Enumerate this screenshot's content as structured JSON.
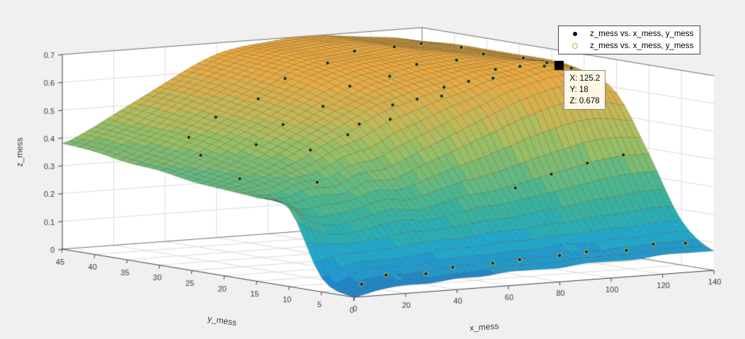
{
  "figure": {
    "background": "#f0f0f0",
    "axes_background": "#ffffff",
    "grid_color": "#dbdbdb"
  },
  "chart_data": {
    "type": "surface",
    "title": "",
    "xlabel": "x_mess",
    "ylabel": "y_mess",
    "zlabel": "z_mess",
    "xlim": [
      0,
      140
    ],
    "ylim": [
      0,
      45
    ],
    "zlim": [
      0,
      0.7
    ],
    "grid": true,
    "x_ticks": [
      0,
      20,
      40,
      60,
      80,
      100,
      120,
      140
    ],
    "x_tick_labels": [
      "0",
      "20",
      "40",
      "60",
      "80",
      "100",
      "120",
      "140"
    ],
    "y_ticks": [
      0,
      5,
      10,
      15,
      20,
      25,
      30,
      35,
      40,
      45
    ],
    "y_tick_labels": [
      "0",
      "5",
      "10",
      "15",
      "20",
      "25",
      "30",
      "35",
      "40",
      "45"
    ],
    "z_ticks": [
      0,
      0.1,
      0.2,
      0.3,
      0.4,
      0.5,
      0.6,
      0.7
    ],
    "z_tick_labels": [
      "0",
      "0.1",
      "0.2",
      "0.3",
      "0.4",
      "0.5",
      "0.6",
      "0.7"
    ],
    "surface": {
      "x": [
        0,
        10,
        20,
        30,
        40,
        50,
        60,
        70,
        80,
        90,
        100,
        110,
        120,
        130,
        140
      ],
      "y": [
        0,
        5,
        10,
        15,
        20,
        25,
        30,
        35,
        40,
        45
      ],
      "z": [
        [
          0.0,
          0.02,
          0.03,
          0.03,
          0.04,
          0.04,
          0.05,
          0.05,
          0.05,
          0.06,
          0.06,
          0.06,
          0.07,
          0.07,
          0.07
        ],
        [
          0.05,
          0.09,
          0.1,
          0.1,
          0.11,
          0.12,
          0.12,
          0.13,
          0.13,
          0.14,
          0.14,
          0.15,
          0.15,
          0.16,
          0.16
        ],
        [
          0.28,
          0.22,
          0.21,
          0.23,
          0.25,
          0.24,
          0.26,
          0.28,
          0.29,
          0.31,
          0.33,
          0.35,
          0.37,
          0.38,
          0.38
        ],
        [
          0.3,
          0.29,
          0.32,
          0.32,
          0.36,
          0.37,
          0.41,
          0.45,
          0.49,
          0.53,
          0.57,
          0.6,
          0.62,
          0.61,
          0.58
        ],
        [
          0.31,
          0.33,
          0.36,
          0.4,
          0.45,
          0.49,
          0.54,
          0.57,
          0.6,
          0.62,
          0.65,
          0.66,
          0.68,
          0.67,
          0.64
        ],
        [
          0.32,
          0.35,
          0.39,
          0.44,
          0.49,
          0.54,
          0.58,
          0.62,
          0.64,
          0.66,
          0.67,
          0.68,
          0.68,
          0.67,
          0.66
        ],
        [
          0.34,
          0.37,
          0.42,
          0.47,
          0.52,
          0.57,
          0.62,
          0.65,
          0.67,
          0.68,
          0.69,
          0.69,
          0.68,
          0.67,
          0.66
        ],
        [
          0.35,
          0.39,
          0.44,
          0.49,
          0.54,
          0.59,
          0.64,
          0.67,
          0.68,
          0.69,
          0.7,
          0.69,
          0.68,
          0.67,
          0.66
        ],
        [
          0.37,
          0.41,
          0.45,
          0.51,
          0.56,
          0.61,
          0.65,
          0.68,
          0.69,
          0.7,
          0.7,
          0.69,
          0.68,
          0.67,
          0.66
        ],
        [
          0.38,
          0.42,
          0.47,
          0.52,
          0.57,
          0.62,
          0.66,
          0.68,
          0.69,
          0.7,
          0.7,
          0.69,
          0.68,
          0.67,
          0.65
        ]
      ]
    },
    "scatter": {
      "name": "z_mess vs. x_mess, y_mess",
      "dot_color": "#101a38",
      "ring_color": "#a9b83e",
      "points": [
        [
          8,
          2,
          0.03
        ],
        [
          20,
          3,
          0.05
        ],
        [
          33,
          2,
          0.05
        ],
        [
          46,
          3,
          0.06
        ],
        [
          59,
          2,
          0.07
        ],
        [
          72,
          3,
          0.07
        ],
        [
          85,
          2,
          0.08
        ],
        [
          98,
          3,
          0.08
        ],
        [
          111,
          2,
          0.08
        ],
        [
          124,
          3,
          0.09
        ],
        [
          134,
          2,
          0.09
        ],
        [
          88,
          10,
          0.29
        ],
        [
          102,
          10,
          0.33
        ],
        [
          116,
          10,
          0.36
        ],
        [
          130,
          10,
          0.38
        ],
        [
          48,
          20,
          0.47
        ],
        [
          55,
          21,
          0.5
        ],
        [
          62,
          19,
          0.52
        ],
        [
          68,
          21,
          0.56
        ],
        [
          75,
          20,
          0.58
        ],
        [
          82,
          19,
          0.59
        ],
        [
          88,
          21,
          0.61
        ],
        [
          95,
          20,
          0.63
        ],
        [
          102,
          19,
          0.64
        ],
        [
          108,
          21,
          0.66
        ],
        [
          115,
          20,
          0.67
        ],
        [
          122,
          19,
          0.67
        ],
        [
          128,
          21,
          0.67
        ],
        [
          135,
          20,
          0.65
        ],
        [
          30,
          27,
          0.42
        ],
        [
          43,
          28,
          0.48
        ],
        [
          56,
          27,
          0.54
        ],
        [
          69,
          28,
          0.6
        ],
        [
          82,
          27,
          0.63
        ],
        [
          95,
          28,
          0.66
        ],
        [
          108,
          27,
          0.67
        ],
        [
          121,
          28,
          0.68
        ],
        [
          134,
          27,
          0.66
        ],
        [
          24,
          35,
          0.42
        ],
        [
          37,
          36,
          0.48
        ],
        [
          51,
          35,
          0.54
        ],
        [
          64,
          36,
          0.6
        ],
        [
          78,
          35,
          0.65
        ],
        [
          91,
          36,
          0.68
        ],
        [
          104,
          35,
          0.69
        ],
        [
          117,
          36,
          0.69
        ],
        [
          130,
          35,
          0.67
        ],
        [
          16,
          30,
          0.38
        ],
        [
          11,
          22,
          0.33
        ],
        [
          26,
          16,
          0.33
        ],
        [
          36,
          21,
          0.42
        ]
      ]
    },
    "datatip": {
      "x": 125.2,
      "y": 18,
      "z": 0.678,
      "label_x": "X: 125.2",
      "label_y": "Y: 18",
      "label_z": "Z: 0.678"
    },
    "legend": {
      "position": "northeast",
      "entries": [
        {
          "marker": "point",
          "color": "#000000",
          "label": "z_mess vs. x_mess, y_mess"
        },
        {
          "marker": "circle",
          "color": "#a9b83e",
          "label": "z_mess vs. x_mess, y_mess"
        }
      ]
    },
    "colormap": [
      [
        0.0,
        "#1b79c6"
      ],
      [
        0.07,
        "#1d95d4"
      ],
      [
        0.18,
        "#1fa8ce"
      ],
      [
        0.29,
        "#2fb1a9"
      ],
      [
        0.4,
        "#4bb68f"
      ],
      [
        0.5,
        "#6fba7b"
      ],
      [
        0.6,
        "#93be68"
      ],
      [
        0.7,
        "#b5bc5c"
      ],
      [
        0.8,
        "#d3b250"
      ],
      [
        0.9,
        "#e6aa45"
      ],
      [
        1.0,
        "#efa83c"
      ]
    ],
    "color_bands": 14,
    "projection": {
      "origin": [
        500,
        420
      ],
      "x_step": [
        3.6286,
        -0.2714
      ],
      "y_step": [
        -9.1556,
        -1.5111
      ],
      "z_step": [
        0,
        -392.857
      ]
    }
  }
}
